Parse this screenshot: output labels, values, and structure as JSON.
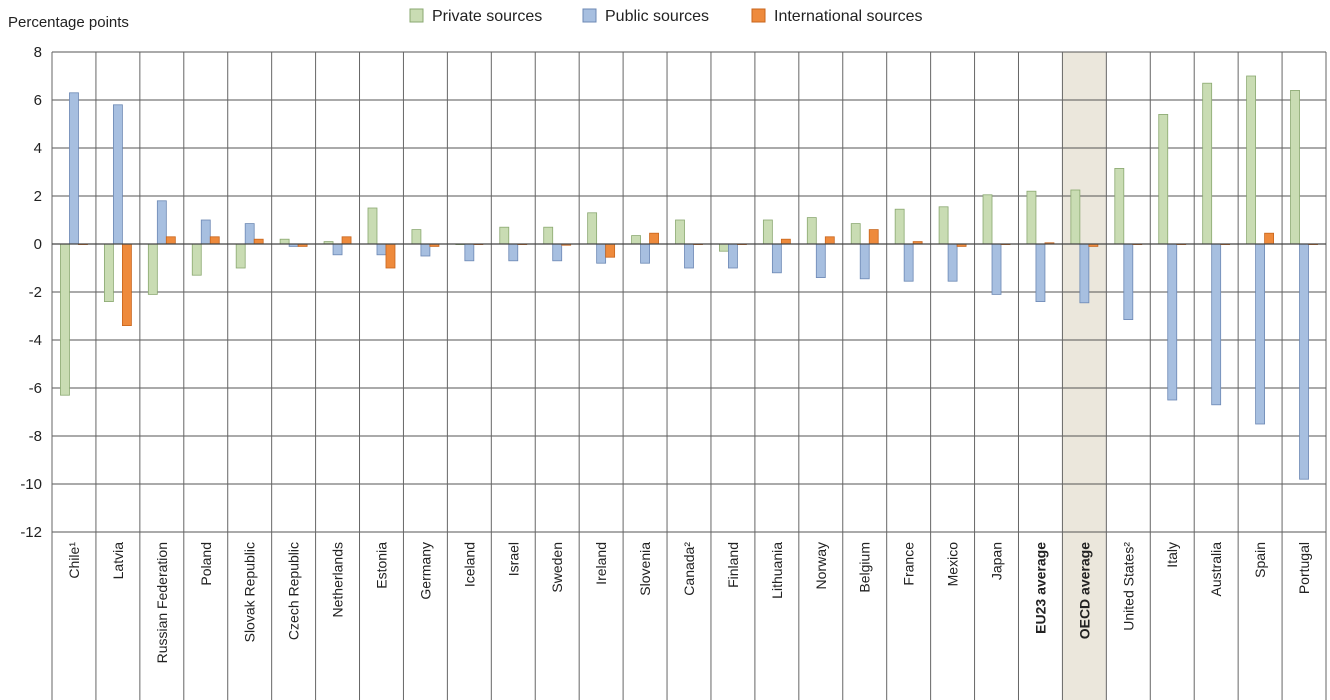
{
  "chart_data": {
    "type": "bar",
    "ylabel": "Percentage points",
    "ylim": [
      -12,
      8
    ],
    "yticks": [
      8,
      6,
      4,
      2,
      0,
      -2,
      -4,
      -6,
      -8,
      -10,
      -12
    ],
    "grid": true,
    "legend_position": "top",
    "highlight_category": "OECD average",
    "bold_categories": [
      "EU23 average",
      "OECD average"
    ],
    "categories": [
      "Chile¹",
      "Latvia",
      "Russian Federation",
      "Poland",
      "Slovak Republic",
      "Czech Republic",
      "Netherlands",
      "Estonia",
      "Germany",
      "Iceland",
      "Israel",
      "Sweden",
      "Ireland",
      "Slovenia",
      "Canada²",
      "Finland",
      "Lithuania",
      "Norway",
      "Belgium",
      "France",
      "Mexico",
      "Japan",
      "EU23 average",
      "OECD average",
      "United States²",
      "Italy",
      "Australia",
      "Spain",
      "Portugal"
    ],
    "series": [
      {
        "name": "Private sources",
        "color": "#c9dcb3",
        "values": [
          -6.3,
          -2.4,
          -2.1,
          -1.3,
          -1.0,
          0.2,
          0.1,
          1.5,
          0.6,
          0.0,
          0.7,
          0.7,
          1.3,
          0.35,
          1.0,
          -0.3,
          1.0,
          1.1,
          0.85,
          1.45,
          1.55,
          2.05,
          2.2,
          2.25,
          3.15,
          5.4,
          6.7,
          7.0,
          6.4
        ]
      },
      {
        "name": "Public sources",
        "color": "#a7bfe0",
        "values": [
          6.3,
          5.8,
          1.8,
          1.0,
          0.85,
          -0.1,
          -0.45,
          -0.45,
          -0.5,
          -0.7,
          -0.7,
          -0.7,
          -0.8,
          -0.8,
          -1.0,
          -1.0,
          -1.2,
          -1.4,
          -1.45,
          -1.55,
          -1.55,
          -2.1,
          -2.4,
          -2.45,
          -3.15,
          -6.5,
          -6.7,
          -7.5,
          -9.8
        ]
      },
      {
        "name": "International sources",
        "color": "#ee8a3c",
        "values": [
          0.0,
          -3.4,
          0.3,
          0.3,
          0.2,
          -0.1,
          0.3,
          -1.0,
          -0.1,
          0.0,
          0.0,
          -0.05,
          -0.55,
          0.45,
          0.0,
          0.0,
          0.2,
          0.3,
          0.6,
          0.1,
          -0.1,
          0.0,
          0.05,
          -0.1,
          0.0,
          0.0,
          0.0,
          0.45,
          0.0
        ]
      }
    ]
  }
}
